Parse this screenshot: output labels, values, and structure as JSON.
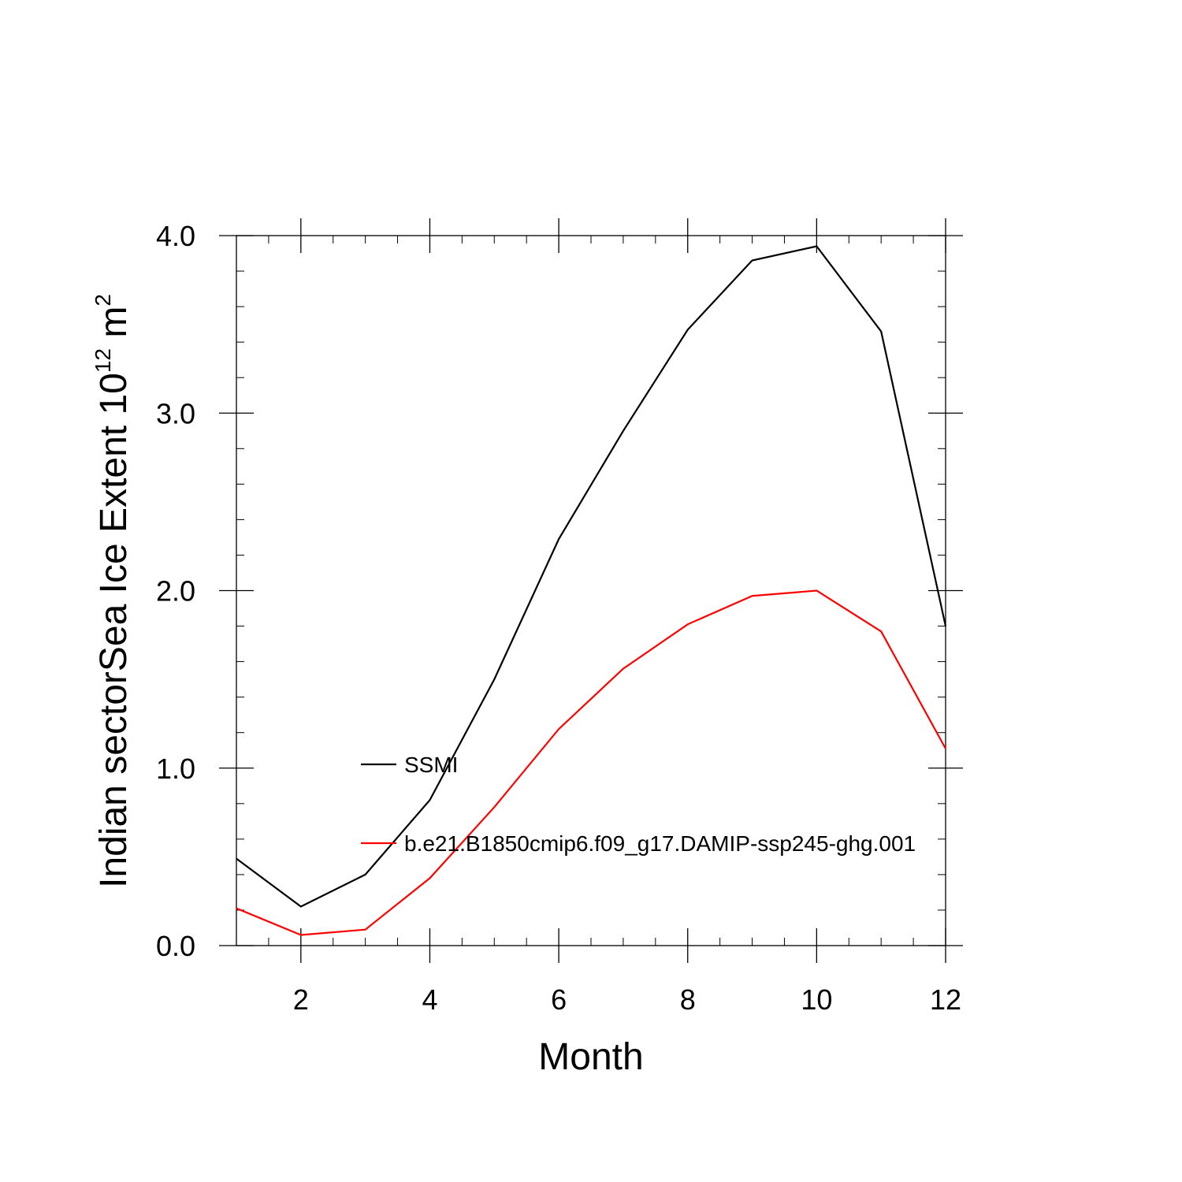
{
  "chart_data": {
    "type": "line",
    "title": "",
    "xlabel": "Month",
    "ylabel_main": "Indian sectorSea Ice Extent 10",
    "ylabel_exp": "12",
    "ylabel_unit": " m",
    "ylabel_unit_exp": "2",
    "xlim": [
      1,
      12
    ],
    "ylim": [
      0,
      4
    ],
    "x": [
      1,
      2,
      3,
      4,
      5,
      6,
      7,
      8,
      9,
      10,
      11,
      12
    ],
    "x_ticks": [
      2,
      4,
      6,
      8,
      10,
      12
    ],
    "x_tick_labels": [
      "2",
      "4",
      "6",
      "8",
      "10",
      "12"
    ],
    "y_ticks": [
      0,
      1,
      2,
      3,
      4
    ],
    "y_tick_labels": [
      "0.0",
      "1.0",
      "2.0",
      "3.0",
      "4.0"
    ],
    "grid": false,
    "legend_position": "inside, lower-middle",
    "series": [
      {
        "name": "SSMI",
        "color": "#000000",
        "values": [
          0.49,
          0.22,
          0.4,
          0.82,
          1.5,
          2.29,
          2.9,
          3.47,
          3.86,
          3.94,
          3.46,
          1.8
        ]
      },
      {
        "name": "b.e21.B1850cmip6.f09_g17.DAMIP-ssp245-ghg.001",
        "color": "#ff0000",
        "values": [
          0.21,
          0.06,
          0.09,
          0.38,
          0.78,
          1.22,
          1.56,
          1.81,
          1.97,
          2.0,
          1.77,
          1.11
        ]
      }
    ]
  }
}
